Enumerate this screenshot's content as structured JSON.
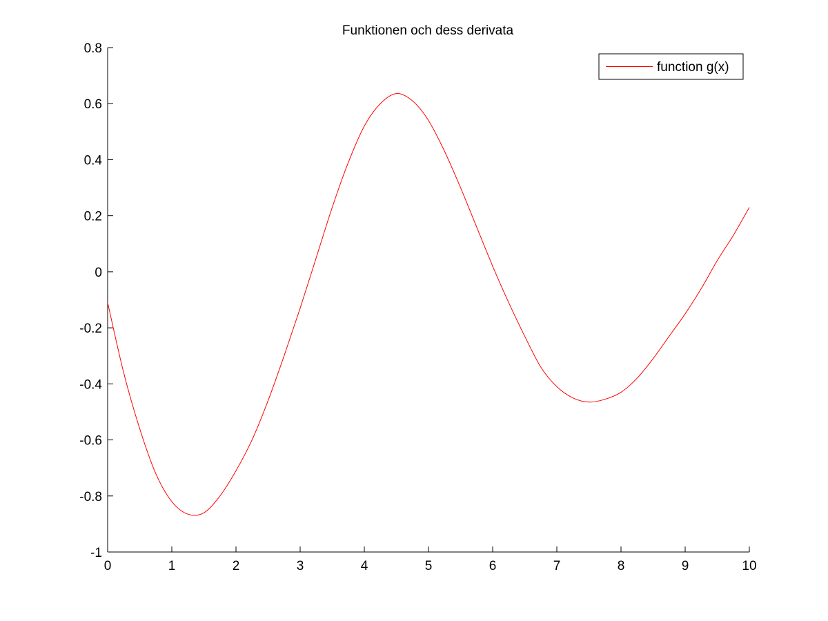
{
  "colors": {
    "background": "#ffffff",
    "axis": "#000000",
    "series_line": "#ff0000"
  },
  "chart_data": {
    "type": "line",
    "title": "Funktionen och dess derivata",
    "xlabel": "",
    "ylabel": "",
    "xlim": [
      0,
      10
    ],
    "ylim": [
      -1,
      0.8
    ],
    "x_ticks": [
      0,
      1,
      2,
      3,
      4,
      5,
      6,
      7,
      8,
      9,
      10
    ],
    "x_tick_labels": [
      "0",
      "1",
      "2",
      "3",
      "4",
      "5",
      "6",
      "7",
      "8",
      "9",
      "10"
    ],
    "y_ticks": [
      0.8,
      0.6,
      0.4,
      0.2,
      0,
      -0.2,
      -0.4,
      -0.6,
      -0.8,
      -1
    ],
    "y_tick_labels": [
      "0.8",
      "0.6",
      "0.4",
      "0.2",
      "0",
      "-0.2",
      "-0.4",
      "-0.6",
      "-0.8",
      "-1"
    ],
    "grid": false,
    "box": false,
    "legend": {
      "position": "top-right",
      "entries": [
        "function g(x)"
      ]
    },
    "series": [
      {
        "name": "function g(x)",
        "color": "#ff0000",
        "x": [
          0,
          0.25,
          0.5,
          0.75,
          1,
          1.25,
          1.5,
          1.75,
          2,
          2.25,
          2.5,
          2.75,
          3,
          3.25,
          3.5,
          3.75,
          4,
          4.25,
          4.5,
          4.75,
          5,
          5.25,
          5.5,
          5.75,
          6,
          6.25,
          6.5,
          6.75,
          7,
          7.25,
          7.5,
          7.75,
          8,
          8.25,
          8.5,
          8.75,
          9,
          9.25,
          9.5,
          9.75,
          10
        ],
        "y": [
          -0.11,
          -0.36,
          -0.56,
          -0.72,
          -0.82,
          -0.865,
          -0.86,
          -0.8,
          -0.71,
          -0.6,
          -0.46,
          -0.3,
          -0.13,
          0.05,
          0.23,
          0.39,
          0.52,
          0.6,
          0.636,
          0.61,
          0.54,
          0.43,
          0.3,
          0.16,
          0.02,
          -0.11,
          -0.23,
          -0.34,
          -0.41,
          -0.45,
          -0.465,
          -0.455,
          -0.43,
          -0.38,
          -0.31,
          -0.23,
          -0.15,
          -0.06,
          0.04,
          0.13,
          0.23
        ]
      }
    ]
  }
}
